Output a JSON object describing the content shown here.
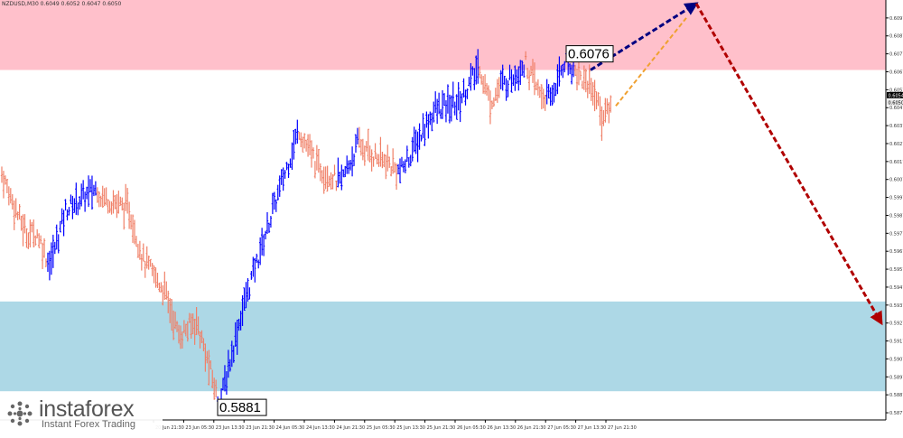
{
  "header": {
    "symbol_line": "NZDUSD,M30  0.6049  0.6052  0.6047  0.6050"
  },
  "logo": {
    "brand": "instaforex",
    "tagline": "Instant Forex Trading"
  },
  "colors": {
    "resistance_zone": "#ffc0cb",
    "support_zone": "#add8e6",
    "bull_bars": "#0000ff",
    "bear_bars": "#f08068",
    "forecast_up": "#000080",
    "forecast_down": "#b00000",
    "minor_forecast": "#f0a030"
  },
  "chart_data": {
    "type": "ohlc",
    "symbol": "NZDUSD",
    "timeframe": "M30",
    "ylim": [
      0.5873,
      0.6107
    ],
    "y_ticks": [
      "0.6097",
      "0.6087",
      "0.6077",
      "0.6067",
      "0.6057",
      "0.6047",
      "0.6037",
      "0.6027",
      "0.6017",
      "0.6007",
      "0.5997",
      "0.5987",
      "0.5977",
      "0.5967",
      "0.5957",
      "0.5947",
      "0.5937",
      "0.5927",
      "0.5917",
      "0.5907",
      "0.5897",
      "0.5887",
      "0.5877"
    ],
    "current_price": "0.6054",
    "current_price_secondary": "0.6050",
    "x_ticks": [
      "20 Jun 21:30",
      "23 Jun 05:30",
      "23 Jun 13:30",
      "23 Jun 21:30",
      "24 Jun 05:30",
      "24 Jun 13:30",
      "24 Jun 21:30",
      "25 Jun 05:30",
      "25 Jun 13:30",
      "25 Jun 21:30",
      "26 Jun 05:30",
      "26 Jun 13:30",
      "26 Jun 21:30",
      "27 Jun 05:30",
      "27 Jun 13:30",
      "27 Jun 21:30"
    ],
    "zones": [
      {
        "name": "resistance",
        "from": 0.6068,
        "to": 0.6107
      },
      {
        "name": "support",
        "from": 0.5889,
        "to": 0.5939
      }
    ],
    "price_labels": [
      {
        "text": "0.6076",
        "value": 0.6076
      },
      {
        "text": "0.5881",
        "value": 0.5881
      }
    ],
    "waypoints": [
      [
        0,
        0.601,
        "d"
      ],
      [
        10,
        0.5985,
        "d"
      ],
      [
        14,
        0.5977,
        "d"
      ],
      [
        20,
        0.5977,
        "d"
      ],
      [
        26,
        0.5962,
        "d"
      ],
      [
        28,
        0.5962,
        "u"
      ],
      [
        36,
        0.599,
        "u"
      ],
      [
        50,
        0.6,
        "u"
      ],
      [
        54,
        0.6002,
        "u"
      ],
      [
        56,
        0.5998,
        "d"
      ],
      [
        72,
        0.599,
        "d"
      ],
      [
        80,
        0.5962,
        "d"
      ],
      [
        92,
        0.5945,
        "d"
      ],
      [
        100,
        0.592,
        "d"
      ],
      [
        110,
        0.5928,
        "d"
      ],
      [
        122,
        0.5885,
        "d"
      ],
      [
        124,
        0.5885,
        "u"
      ],
      [
        136,
        0.5935,
        "u"
      ],
      [
        150,
        0.598,
        "u"
      ],
      [
        168,
        0.6035,
        "u"
      ],
      [
        170,
        0.603,
        "d"
      ],
      [
        178,
        0.6015,
        "d"
      ],
      [
        190,
        0.6006,
        "d"
      ],
      [
        192,
        0.6006,
        "u"
      ],
      [
        202,
        0.6028,
        "u"
      ],
      [
        204,
        0.6024,
        "d"
      ],
      [
        216,
        0.6017,
        "d"
      ],
      [
        224,
        0.6012,
        "d"
      ],
      [
        226,
        0.6012,
        "u"
      ],
      [
        244,
        0.6045,
        "u"
      ],
      [
        258,
        0.605,
        "u"
      ],
      [
        270,
        0.607,
        "u"
      ],
      [
        272,
        0.6062,
        "d"
      ],
      [
        276,
        0.605,
        "d"
      ],
      [
        282,
        0.606,
        "d"
      ],
      [
        284,
        0.606,
        "u"
      ],
      [
        296,
        0.6072,
        "u"
      ],
      [
        298,
        0.6066,
        "d"
      ],
      [
        304,
        0.6055,
        "d"
      ],
      [
        308,
        0.6052,
        "d"
      ],
      [
        310,
        0.6052,
        "u"
      ],
      [
        318,
        0.6073,
        "u"
      ],
      [
        324,
        0.6068,
        "u"
      ],
      [
        326,
        0.6065,
        "d"
      ],
      [
        334,
        0.6058,
        "d"
      ],
      [
        340,
        0.604,
        "d"
      ],
      [
        342,
        0.6046,
        "d"
      ],
      [
        345,
        0.6049,
        "d"
      ]
    ],
    "forecast": [
      {
        "name": "wave-up",
        "from": [
          0.6068
        ],
        "to": [
          0.6105
        ],
        "style": "dashed"
      },
      {
        "name": "wave-down",
        "to": [
          0.5927
        ],
        "style": "dashed"
      },
      {
        "name": "minor-up",
        "from": [
          0.6048
        ],
        "to": [
          0.6097
        ],
        "style": "dashed"
      }
    ]
  }
}
